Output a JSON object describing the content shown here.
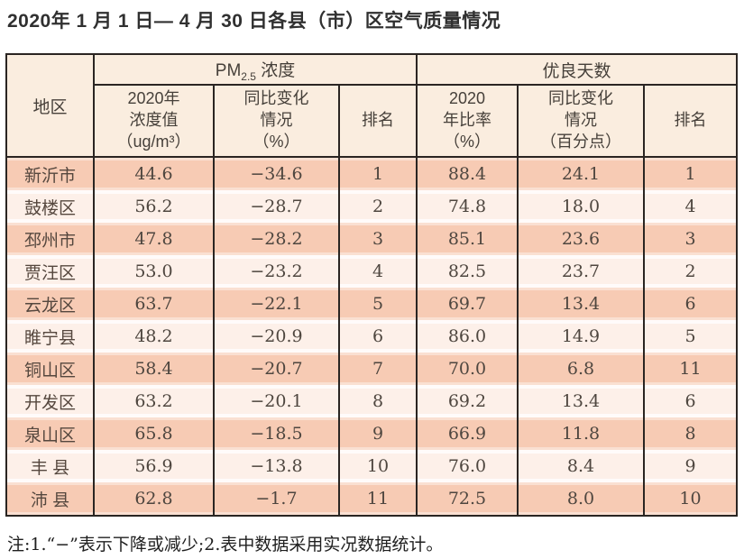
{
  "page": {
    "title": "2020年 1 月 1 日— 4 月 30 日各县（市）区空气质量情况",
    "footnote": "注:1.“−”表示下降或减少;2.表中数据采用实况数据统计。"
  },
  "colors": {
    "row_dark": "#f7cbb4",
    "row_light": "#fdf0e9",
    "header_bg": "#faeddf",
    "border": "#2a2522",
    "text": "#4e463f"
  },
  "table": {
    "region_header": "地区",
    "pm_group": {
      "prefix": "PM",
      "sub": "2.5",
      "suffix": " 浓度"
    },
    "days_group": "优良天数",
    "sub_headers": [
      "2020年\n浓度值\n（ug/m³）",
      "同比变化\n情况\n（%）",
      "排名",
      "2020\n年比率\n（%）",
      "同比变化\n情况\n（百分点）",
      "排名"
    ],
    "rows": [
      {
        "region": "新沂市",
        "pm_value": "44.6",
        "pm_change": "−34.6",
        "pm_rank": "1",
        "days_rate": "88.4",
        "days_change": "24.1",
        "days_rank": "1"
      },
      {
        "region": "鼓楼区",
        "pm_value": "56.2",
        "pm_change": "−28.7",
        "pm_rank": "2",
        "days_rate": "74.8",
        "days_change": "18.0",
        "days_rank": "4"
      },
      {
        "region": "邳州市",
        "pm_value": "47.8",
        "pm_change": "−28.2",
        "pm_rank": "3",
        "days_rate": "85.1",
        "days_change": "23.6",
        "days_rank": "3"
      },
      {
        "region": "贾汪区",
        "pm_value": "53.0",
        "pm_change": "−23.2",
        "pm_rank": "4",
        "days_rate": "82.5",
        "days_change": "23.7",
        "days_rank": "2"
      },
      {
        "region": "云龙区",
        "pm_value": "63.7",
        "pm_change": "−22.1",
        "pm_rank": "5",
        "days_rate": "69.7",
        "days_change": "13.4",
        "days_rank": "6"
      },
      {
        "region": "睢宁县",
        "pm_value": "48.2",
        "pm_change": "−20.9",
        "pm_rank": "6",
        "days_rate": "86.0",
        "days_change": "14.9",
        "days_rank": "5"
      },
      {
        "region": "铜山区",
        "pm_value": "58.4",
        "pm_change": "−20.7",
        "pm_rank": "7",
        "days_rate": "70.0",
        "days_change": "6.8",
        "days_rank": "11"
      },
      {
        "region": "开发区",
        "pm_value": "63.2",
        "pm_change": "−20.1",
        "pm_rank": "8",
        "days_rate": "69.2",
        "days_change": "13.4",
        "days_rank": "6"
      },
      {
        "region": "泉山区",
        "pm_value": "65.8",
        "pm_change": "−18.5",
        "pm_rank": "9",
        "days_rate": "66.9",
        "days_change": "11.8",
        "days_rank": "8"
      },
      {
        "region": "丰 县",
        "pm_value": "56.9",
        "pm_change": "−13.8",
        "pm_rank": "10",
        "days_rate": "76.0",
        "days_change": "8.4",
        "days_rank": "9"
      },
      {
        "region": "沛 县",
        "pm_value": "62.8",
        "pm_change": "−1.7",
        "pm_rank": "11",
        "days_rate": "72.5",
        "days_change": "8.0",
        "days_rank": "10"
      }
    ]
  }
}
